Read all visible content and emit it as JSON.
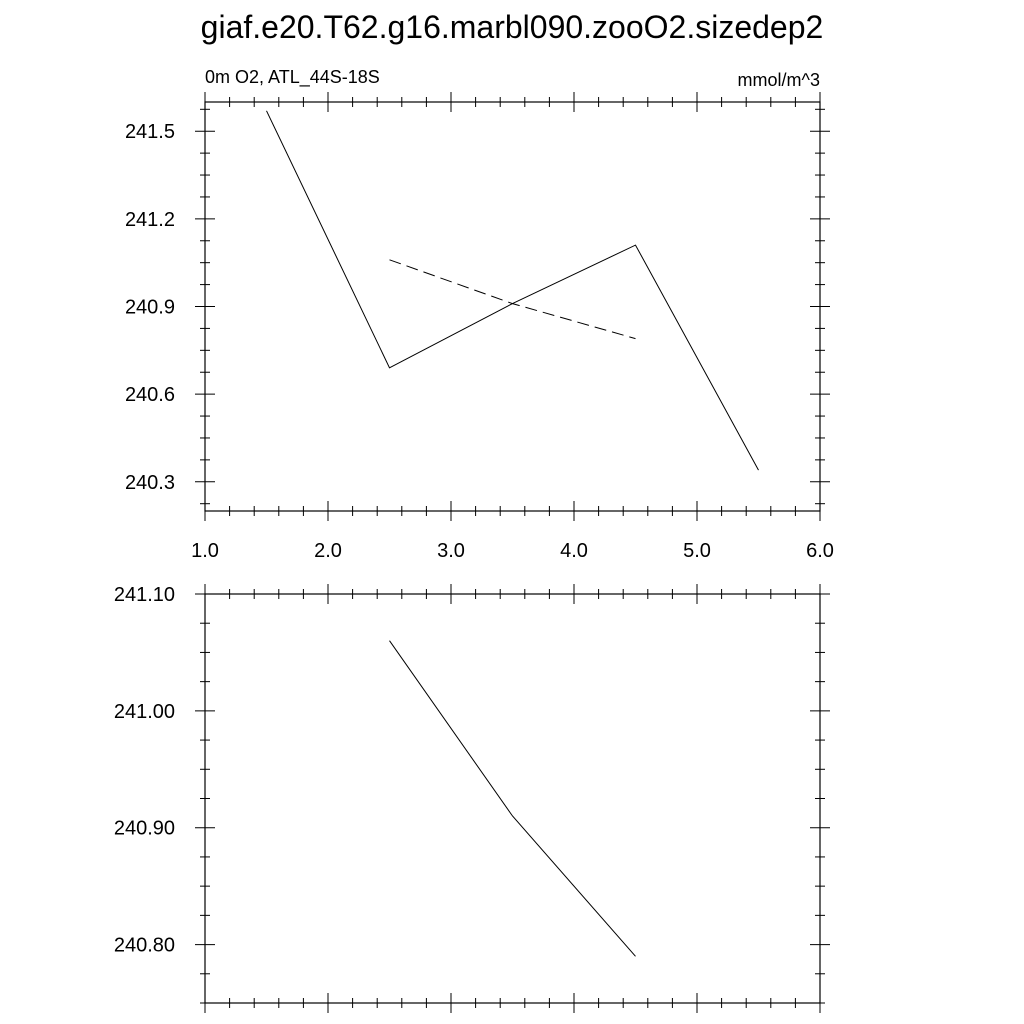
{
  "figure": {
    "title": "giaf.e20.T62.g16.marbl090.zooO2.sizedep2"
  },
  "chart_data": [
    {
      "type": "line",
      "left_label": "0m O2, ATL_44S-18S",
      "right_label": "mmol/m^3",
      "xlim": [
        1.0,
        6.0
      ],
      "ylim": [
        240.2,
        241.6
      ],
      "xticks": [
        1.0,
        2.0,
        3.0,
        4.0,
        5.0,
        6.0
      ],
      "xtick_labels": [
        "1.0",
        "2.0",
        "3.0",
        "4.0",
        "5.0",
        "6.0"
      ],
      "yticks": [
        240.3,
        240.6,
        240.9,
        241.2,
        241.5
      ],
      "ytick_labels": [
        "240.3",
        "240.6",
        "240.9",
        "241.2",
        "241.5"
      ],
      "grid": false,
      "series": [
        {
          "style": "solid",
          "x": [
            1.5,
            2.5,
            3.5,
            4.5,
            5.5
          ],
          "y": [
            241.57,
            240.69,
            240.91,
            241.11,
            240.34
          ]
        },
        {
          "style": "dashed",
          "x": [
            2.5,
            3.5,
            4.5
          ],
          "y": [
            241.06,
            240.91,
            240.79
          ]
        }
      ]
    },
    {
      "type": "line",
      "xlim": [
        1.0,
        6.0
      ],
      "ylim": [
        240.75,
        241.1
      ],
      "xticks": [
        1.0,
        2.0,
        3.0,
        4.0,
        5.0,
        6.0
      ],
      "yticks": [
        240.8,
        240.9,
        241.0,
        241.1
      ],
      "ytick_labels": [
        "240.80",
        "240.90",
        "241.00",
        "241.10"
      ],
      "grid": false,
      "series": [
        {
          "style": "solid",
          "x": [
            2.5,
            3.5,
            4.5
          ],
          "y": [
            241.06,
            240.91,
            240.79
          ]
        }
      ]
    }
  ]
}
